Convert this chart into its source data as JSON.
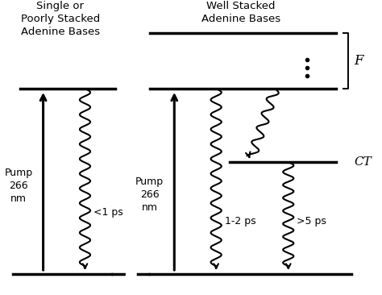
{
  "title_left": "Single or\nPoorly Stacked\nAdenine Bases",
  "title_right": "Well Stacked\nAdenine Bases",
  "pump_label": "Pump\n266\nnm",
  "label_F": "F",
  "label_CT": "CT",
  "label_time1": "<1 ps",
  "label_time2": "1-2 ps",
  "label_time3": ">5 ps",
  "bg_color": "#ffffff",
  "line_color": "#000000",
  "fig_width": 4.74,
  "fig_height": 3.66,
  "dpi": 100
}
